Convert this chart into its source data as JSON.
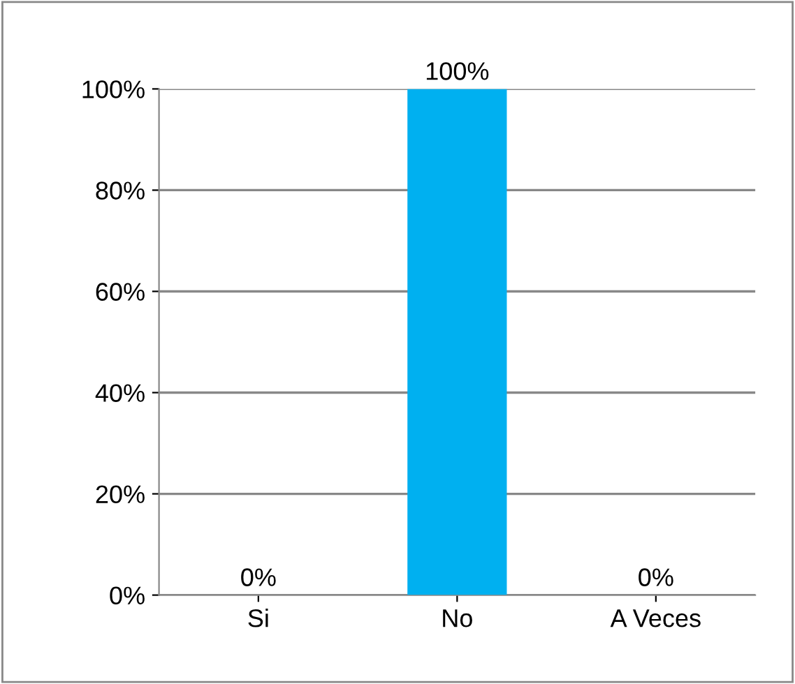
{
  "chart_data": {
    "type": "bar",
    "categories": [
      "Si",
      "No",
      "A Veces"
    ],
    "values": [
      0,
      100,
      0
    ],
    "color": "#00b0f0",
    "value_labels": [
      "0%",
      "100%",
      "0%"
    ],
    "ylim": [
      0,
      100
    ],
    "yticks": [
      {
        "value": 0,
        "label": "0%"
      },
      {
        "value": 20,
        "label": "20%"
      },
      {
        "value": 40,
        "label": "40%"
      },
      {
        "value": 60,
        "label": "60%"
      },
      {
        "value": 80,
        "label": "80%"
      },
      {
        "value": 100,
        "label": "100%"
      }
    ],
    "grid": "y",
    "legend": false
  }
}
